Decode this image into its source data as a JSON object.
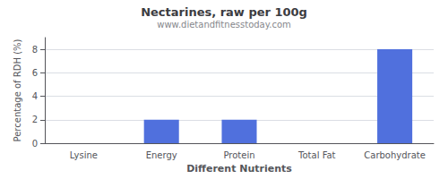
{
  "chart_data": {
    "type": "bar",
    "title": "Nectarines, raw per 100g",
    "subtitle": "www.dietandfitnesstoday.com",
    "categories": [
      "Lysine",
      "Energy",
      "Protein",
      "Total Fat",
      "Carbohydrate"
    ],
    "values": [
      0,
      2,
      2,
      0,
      8
    ],
    "xlabel": "Different Nutrients",
    "ylabel": "Percentage of RDH (%)",
    "ylim": [
      0,
      9
    ],
    "yticks": [
      0,
      2,
      4,
      6,
      8
    ],
    "grid": true
  }
}
